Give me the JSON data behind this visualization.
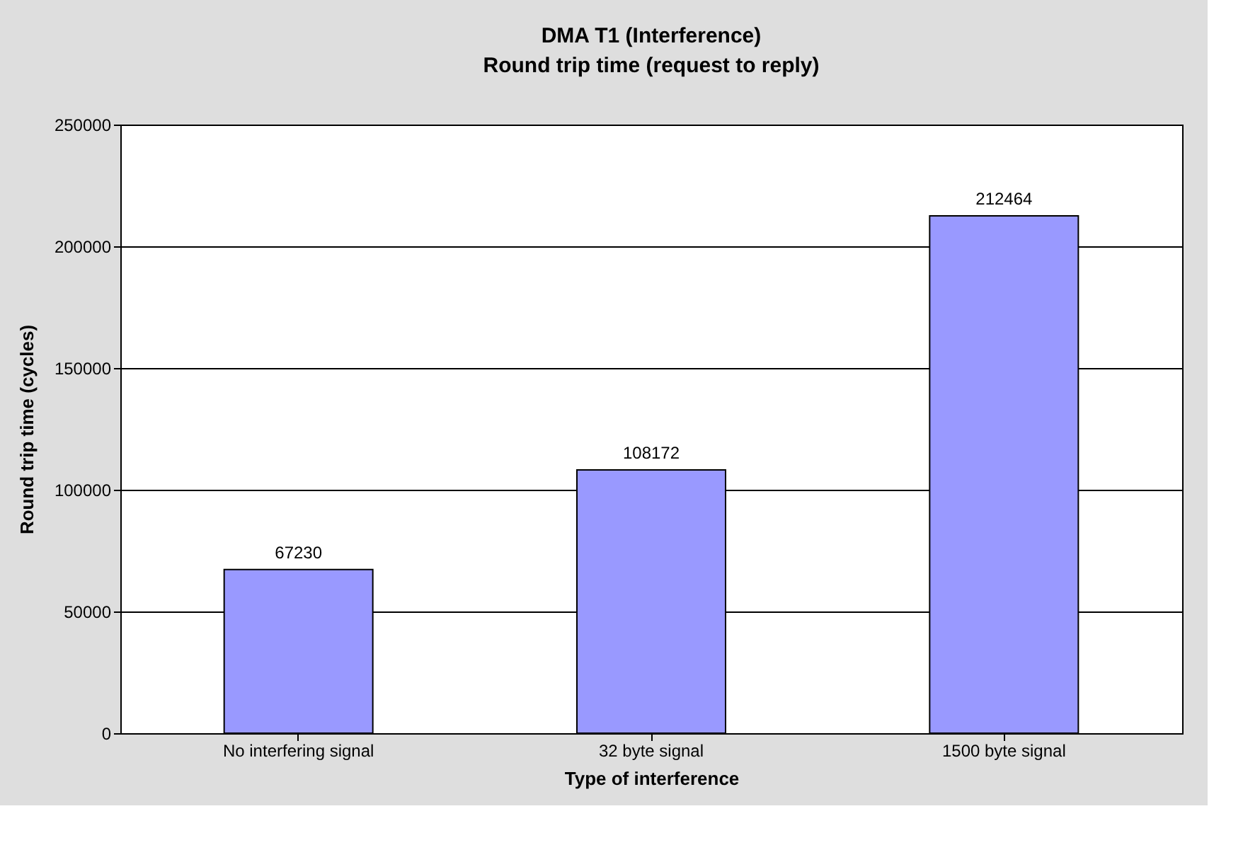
{
  "chart_data": {
    "type": "bar",
    "title": "DMA T1 (Interference)",
    "subtitle": "Round trip time (request to reply)",
    "xlabel": "Type of interference",
    "ylabel": "Round trip time (cycles)",
    "categories": [
      "No interfering signal",
      "32 byte signal",
      "1500 byte signal"
    ],
    "values": [
      67230,
      108172,
      212464
    ],
    "color": "#9999ff",
    "ylim": [
      0,
      250000
    ],
    "yticks": [
      0,
      50000,
      100000,
      150000,
      200000,
      250000
    ],
    "grid": "y",
    "data_labels": true
  }
}
